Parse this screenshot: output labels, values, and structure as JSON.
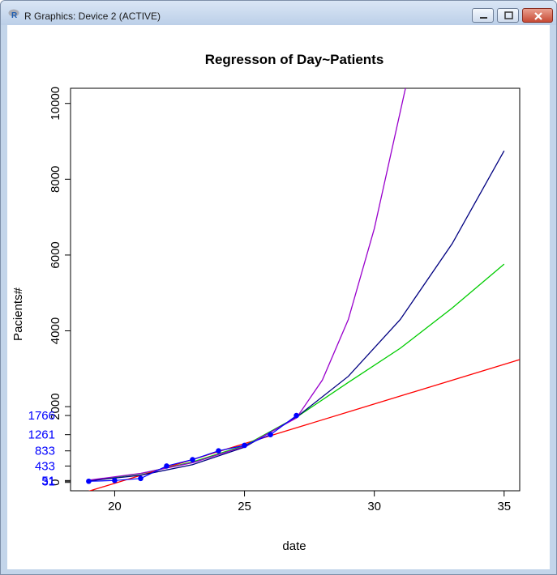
{
  "window": {
    "title": "R Graphics: Device 2 (ACTIVE)",
    "icons": [
      "r-logo-icon",
      "minimize-icon",
      "maximize-icon",
      "close-icon"
    ]
  },
  "chart_data": {
    "type": "scatter",
    "title": "Regresson of Day~Patients",
    "xlabel": "date",
    "ylabel": "Pacients#",
    "xlim": [
      18.3,
      35.6
    ],
    "ylim": [
      -220,
      10400
    ],
    "x_ticks": [
      "20",
      "25",
      "30",
      "35"
    ],
    "y_ticks": [
      "0",
      "2000",
      "4000",
      "6000",
      "8000",
      "10000"
    ],
    "points": {
      "color": "#0000ff",
      "x": [
        19,
        20,
        21,
        22,
        23,
        24,
        25,
        26,
        27
      ],
      "y": [
        31,
        51,
        104,
        433,
        602,
        833,
        977,
        1261,
        1766
      ]
    },
    "point_labels": {
      "color": "#0000ff",
      "labels": [
        "31",
        "51",
        "433",
        "833",
        "1261",
        "1766"
      ],
      "values": [
        31,
        51,
        433,
        833,
        1261,
        1766
      ]
    },
    "series": [
      {
        "color": "#ff0000",
        "x": [
          18,
          36
        ],
        "y": [
          -440,
          3324
        ]
      },
      {
        "color": "#00cc00",
        "x": [
          19,
          21,
          23,
          25,
          27,
          29,
          31,
          33,
          35
        ],
        "y": [
          40,
          230,
          540,
          970,
          1720,
          2640,
          3540,
          4600,
          5760
        ]
      },
      {
        "color": "#000080",
        "x": [
          19,
          21,
          23,
          25,
          27,
          29,
          31,
          33,
          35
        ],
        "y": [
          40,
          190,
          470,
          930,
          1720,
          2800,
          4300,
          6300,
          8750
        ]
      },
      {
        "color": "#9900cc",
        "x": [
          19,
          21,
          23,
          25,
          27,
          28,
          29,
          30,
          31.2
        ],
        "y": [
          60,
          240,
          520,
          950,
          1700,
          2700,
          4300,
          6700,
          10400
        ]
      }
    ]
  }
}
